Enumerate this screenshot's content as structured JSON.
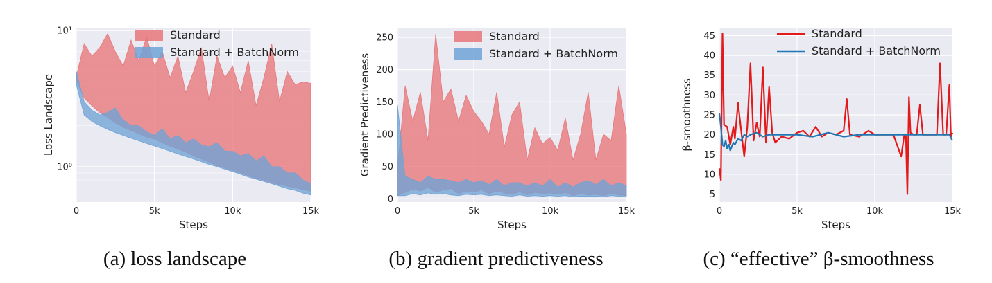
{
  "chart_data": [
    {
      "type": "area",
      "xlabel": "Steps",
      "ylabel": "Loss Landscape",
      "yscale": "log",
      "xlim": [
        0,
        15000
      ],
      "ylim": [
        0.55,
        10.5
      ],
      "x_ticks": [
        {
          "v": 0,
          "label": "0"
        },
        {
          "v": 5000,
          "label": "5k"
        },
        {
          "v": 10000,
          "label": "10k"
        },
        {
          "v": 15000,
          "label": "15k"
        }
      ],
      "y_ticks": [
        {
          "v": 1,
          "label": "10⁰"
        },
        {
          "v": 10,
          "label": "10¹"
        }
      ],
      "grid": true,
      "legend": "top-center",
      "series": [
        {
          "name": "Standard",
          "color": "#e8767a",
          "x": [
            0,
            500,
            1000,
            1500,
            2000,
            2500,
            3000,
            3500,
            4000,
            4500,
            5000,
            5500,
            6000,
            6500,
            7000,
            7500,
            8000,
            8500,
            9000,
            9500,
            10000,
            10500,
            11000,
            11500,
            12000,
            12500,
            13000,
            13500,
            14000,
            14500,
            15000
          ],
          "low": [
            4.3,
            3.2,
            2.8,
            2.5,
            2.3,
            2.1,
            1.95,
            1.85,
            1.75,
            1.65,
            1.6,
            1.5,
            1.42,
            1.35,
            1.28,
            1.2,
            1.14,
            1.08,
            1.02,
            0.98,
            0.94,
            0.9,
            0.86,
            0.82,
            0.8,
            0.76,
            0.74,
            0.72,
            0.7,
            0.68,
            0.66
          ],
          "high": [
            4.6,
            8.0,
            6.5,
            7.5,
            9.5,
            7.0,
            5.5,
            8.5,
            6.0,
            9.0,
            5.5,
            7.0,
            4.5,
            6.5,
            3.5,
            5.0,
            7.5,
            3.0,
            6.5,
            4.5,
            5.5,
            3.5,
            6.0,
            2.8,
            4.5,
            8.0,
            3.0,
            5.0,
            4.0,
            4.2,
            4.1
          ]
        },
        {
          "name": "Standard + BatchNorm",
          "color": "#6fa3d6",
          "x": [
            0,
            500,
            1000,
            1500,
            2000,
            2500,
            3000,
            3500,
            4000,
            4500,
            5000,
            5500,
            6000,
            6500,
            7000,
            7500,
            8000,
            8500,
            9000,
            9500,
            10000,
            10500,
            11000,
            11500,
            12000,
            12500,
            13000,
            13500,
            14000,
            14500,
            15000
          ],
          "low": [
            4.0,
            2.4,
            2.15,
            2.0,
            1.88,
            1.78,
            1.7,
            1.62,
            1.55,
            1.48,
            1.42,
            1.36,
            1.3,
            1.24,
            1.19,
            1.14,
            1.09,
            1.04,
            1.0,
            0.96,
            0.92,
            0.88,
            0.84,
            0.81,
            0.78,
            0.75,
            0.72,
            0.69,
            0.67,
            0.64,
            0.62
          ],
          "high": [
            5.0,
            3.0,
            2.6,
            2.4,
            2.5,
            2.7,
            2.2,
            2.0,
            2.0,
            1.8,
            1.7,
            1.9,
            1.6,
            1.7,
            1.5,
            1.6,
            1.45,
            1.4,
            1.5,
            1.3,
            1.3,
            1.2,
            1.25,
            1.1,
            1.2,
            1.0,
            1.0,
            0.9,
            0.9,
            0.8,
            0.75
          ]
        }
      ]
    },
    {
      "type": "area",
      "xlabel": "Steps",
      "ylabel": "Gradient Predictiveness",
      "xlim": [
        0,
        15000
      ],
      "ylim": [
        -5,
        265
      ],
      "x_ticks": [
        {
          "v": 0,
          "label": "0"
        },
        {
          "v": 5000,
          "label": "5k"
        },
        {
          "v": 10000,
          "label": "10k"
        },
        {
          "v": 15000,
          "label": "15k"
        }
      ],
      "y_ticks": [
        {
          "v": 0,
          "label": "0"
        },
        {
          "v": 50,
          "label": "50"
        },
        {
          "v": 100,
          "label": "100"
        },
        {
          "v": 150,
          "label": "150"
        },
        {
          "v": 200,
          "label": "200"
        },
        {
          "v": 250,
          "label": "250"
        }
      ],
      "grid": true,
      "legend": "top-center",
      "series": [
        {
          "name": "Standard",
          "color": "#e8767a",
          "x": [
            0,
            500,
            1000,
            1500,
            2000,
            2500,
            3000,
            3500,
            4000,
            4500,
            5000,
            5500,
            6000,
            6500,
            7000,
            7500,
            8000,
            8500,
            9000,
            9500,
            10000,
            10500,
            11000,
            11500,
            12000,
            12500,
            13000,
            13500,
            14000,
            14500,
            15000
          ],
          "low": [
            5,
            10,
            15,
            12,
            18,
            10,
            14,
            16,
            8,
            12,
            10,
            14,
            8,
            12,
            9,
            7,
            11,
            6,
            10,
            8,
            9,
            7,
            10,
            5,
            8,
            6,
            7,
            5,
            8,
            6,
            5
          ],
          "high": [
            45,
            175,
            120,
            165,
            90,
            255,
            150,
            170,
            120,
            160,
            135,
            120,
            100,
            165,
            80,
            130,
            150,
            60,
            110,
            85,
            95,
            75,
            125,
            60,
            100,
            165,
            60,
            100,
            90,
            175,
            100
          ]
        },
        {
          "name": "Standard + BatchNorm",
          "color": "#6fa3d6",
          "x": [
            0,
            500,
            1000,
            1500,
            2000,
            2500,
            3000,
            3500,
            4000,
            4500,
            5000,
            5500,
            6000,
            6500,
            7000,
            7500,
            8000,
            8500,
            9000,
            9500,
            10000,
            10500,
            11000,
            11500,
            12000,
            12500,
            13000,
            13500,
            14000,
            14500,
            15000
          ],
          "low": [
            5,
            5,
            8,
            6,
            9,
            7,
            8,
            6,
            5,
            7,
            6,
            7,
            5,
            6,
            5,
            4,
            6,
            4,
            5,
            4,
            5,
            4,
            5,
            3,
            4,
            4,
            4,
            3,
            5,
            4,
            3
          ],
          "high": [
            145,
            35,
            30,
            25,
            35,
            30,
            30,
            28,
            25,
            30,
            25,
            28,
            22,
            30,
            20,
            25,
            25,
            20,
            25,
            20,
            30,
            18,
            25,
            18,
            25,
            28,
            22,
            30,
            20,
            25,
            20
          ]
        }
      ]
    },
    {
      "type": "line",
      "xlabel": "Steps",
      "ylabel": "β-smoothness",
      "xlim": [
        0,
        15000
      ],
      "ylim": [
        3,
        47
      ],
      "x_ticks": [
        {
          "v": 0,
          "label": "0"
        },
        {
          "v": 5000,
          "label": "5k"
        },
        {
          "v": 10000,
          "label": "10k"
        },
        {
          "v": 15000,
          "label": "15k"
        }
      ],
      "y_ticks": [
        {
          "v": 5,
          "label": "5"
        },
        {
          "v": 10,
          "label": "10"
        },
        {
          "v": 15,
          "label": "15"
        },
        {
          "v": 20,
          "label": "20"
        },
        {
          "v": 25,
          "label": "25"
        },
        {
          "v": 30,
          "label": "30"
        },
        {
          "v": 35,
          "label": "35"
        },
        {
          "v": 40,
          "label": "40"
        },
        {
          "v": 45,
          "label": "45"
        }
      ],
      "grid": true,
      "legend": "top-center",
      "series": [
        {
          "name": "Standard",
          "color": "#e31a1c",
          "x": [
            0,
            100,
            200,
            300,
            500,
            700,
            900,
            1000,
            1200,
            1400,
            1600,
            1800,
            2000,
            2200,
            2400,
            2600,
            2800,
            3000,
            3200,
            3400,
            3600,
            4000,
            4500,
            5000,
            5400,
            5800,
            6200,
            6600,
            7000,
            7500,
            8000,
            8200,
            8400,
            9000,
            9600,
            10000,
            10600,
            11200,
            11700,
            11900,
            12000,
            12100,
            12200,
            12300,
            12500,
            12700,
            12900,
            13100,
            13500,
            14000,
            14200,
            14400,
            14600,
            14800,
            14900,
            15000
          ],
          "y": [
            11.5,
            8.5,
            45.5,
            22.5,
            22,
            17.5,
            22,
            19,
            28,
            21,
            14.5,
            22,
            38,
            18.5,
            23,
            19.5,
            37,
            18,
            32,
            20.5,
            18,
            19.5,
            19,
            20.5,
            21,
            19.5,
            22,
            19.5,
            20.5,
            20,
            21,
            29,
            20,
            19.5,
            21,
            20,
            20,
            20,
            14.5,
            20,
            20,
            5,
            29.5,
            20.5,
            20,
            20,
            27.5,
            20,
            20,
            20,
            38,
            20,
            20,
            32.5,
            19.5,
            20.5
          ]
        },
        {
          "name": "Standard + BatchNorm",
          "color": "#1f77b4",
          "x": [
            0,
            100,
            200,
            300,
            400,
            500,
            600,
            700,
            800,
            900,
            1000,
            1200,
            1400,
            1600,
            1800,
            2000,
            2400,
            2800,
            3200,
            4000,
            5000,
            6000,
            7000,
            8000,
            9000,
            10000,
            11000,
            12000,
            13000,
            14000,
            14800,
            15000
          ],
          "y": [
            25.5,
            22,
            17.5,
            17,
            18.5,
            16.5,
            17.5,
            16,
            17,
            18,
            17.5,
            19,
            18.5,
            20,
            19.5,
            20,
            20.5,
            19.5,
            20,
            20,
            20,
            19.5,
            20.5,
            19.5,
            20,
            20,
            20,
            20,
            20,
            20,
            20,
            18.5
          ]
        }
      ]
    }
  ],
  "captions": [
    "(a) loss landscape",
    "(b) gradient predictiveness",
    "(c) “effective” β-smoothness"
  ]
}
